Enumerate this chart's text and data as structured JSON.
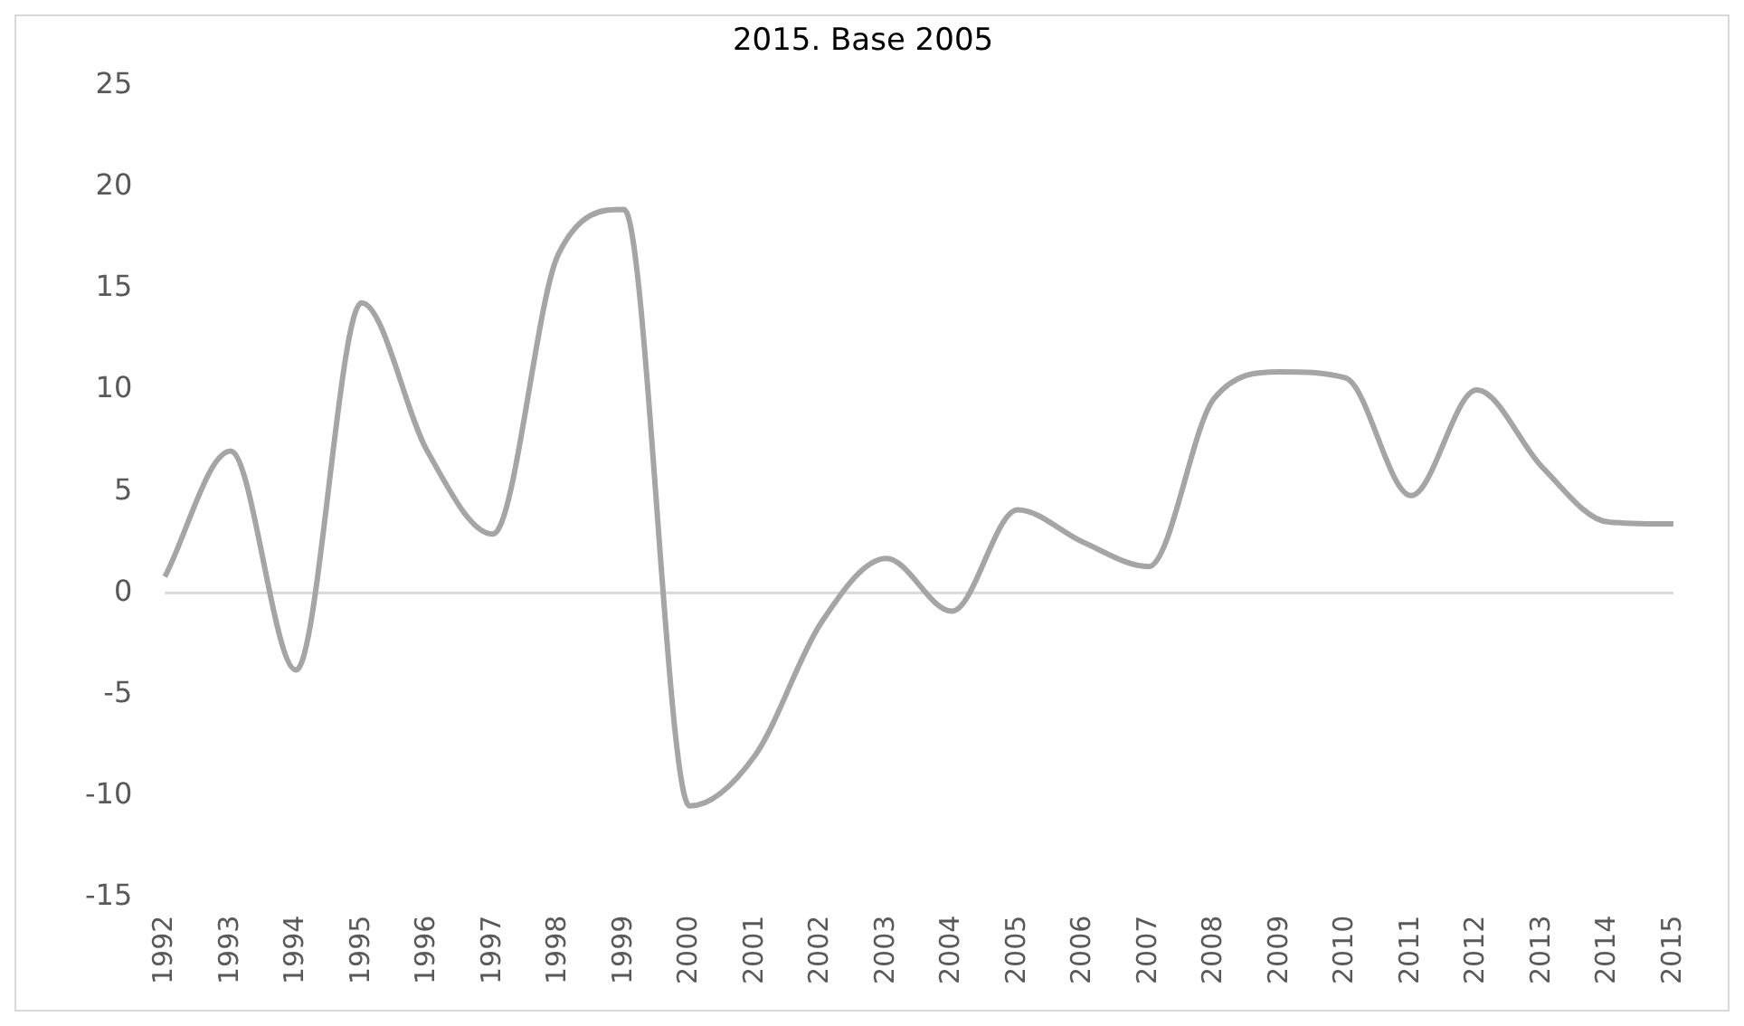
{
  "chart_data": {
    "type": "line",
    "title": "2015. Base 2005",
    "categories": [
      "1992",
      "1993",
      "1994",
      "1995",
      "1996",
      "1997",
      "1998",
      "1999",
      "2000",
      "2001",
      "2002",
      "2003",
      "2004",
      "2005",
      "2006",
      "2007",
      "2008",
      "2009",
      "2010",
      "2011",
      "2012",
      "2013",
      "2014",
      "2015"
    ],
    "series": [
      {
        "color": "#a5a5a5",
        "values": [
          0.8,
          7,
          -3.8,
          14.3,
          7,
          2.9,
          16.7,
          18.9,
          -10.5,
          -8,
          -1.5,
          1.7,
          -0.9,
          4.1,
          2.5,
          1.3,
          9.6,
          10.9,
          10.6,
          4.8,
          10,
          6.2,
          3.5,
          3.4
        ]
      }
    ],
    "ylim": [
      -15,
      25
    ],
    "yticks": [
      -15,
      -10,
      -5,
      0,
      5,
      10,
      15,
      20,
      25
    ],
    "grid": false,
    "ref_lines": [
      {
        "axis": "y",
        "value": 0,
        "color": "#d9d9d9"
      }
    ],
    "legend": false,
    "marker": "none",
    "line_style": "solid"
  }
}
